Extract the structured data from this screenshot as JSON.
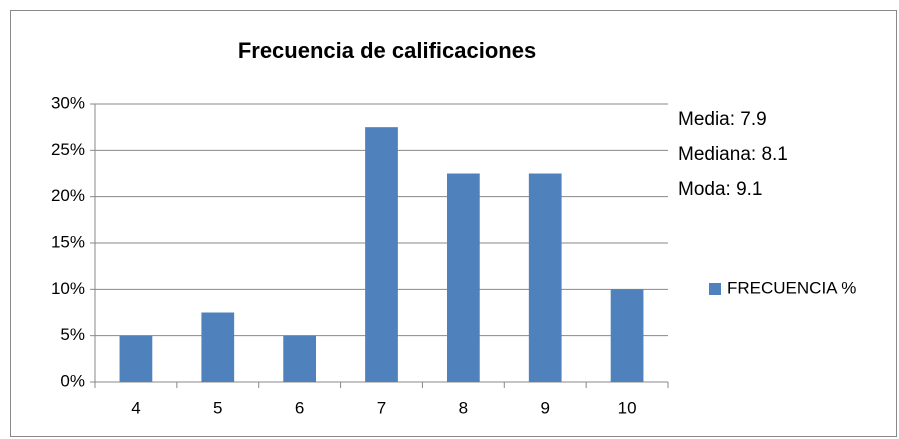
{
  "chart_data": {
    "type": "bar",
    "title": "Frecuencia de calificaciones",
    "categories": [
      "4",
      "5",
      "6",
      "7",
      "8",
      "9",
      "10"
    ],
    "series": [
      {
        "name": "FRECUENCIA %",
        "color": "#4f81bd",
        "values": [
          5,
          7.5,
          5,
          27.5,
          22.5,
          22.5,
          10
        ]
      }
    ],
    "ylim": [
      0,
      30
    ],
    "yticks": [
      {
        "value": 0,
        "label": "0%"
      },
      {
        "value": 5,
        "label": "5%"
      },
      {
        "value": 10,
        "label": "10%"
      },
      {
        "value": 15,
        "label": "15%"
      },
      {
        "value": 20,
        "label": "20%"
      },
      {
        "value": 25,
        "label": "25%"
      },
      {
        "value": 30,
        "label": "30%"
      }
    ],
    "grid": true,
    "legend": "right",
    "annotations": [
      "Media: 7.9",
      "Mediana: 8.1",
      "Moda: 9.1"
    ]
  }
}
